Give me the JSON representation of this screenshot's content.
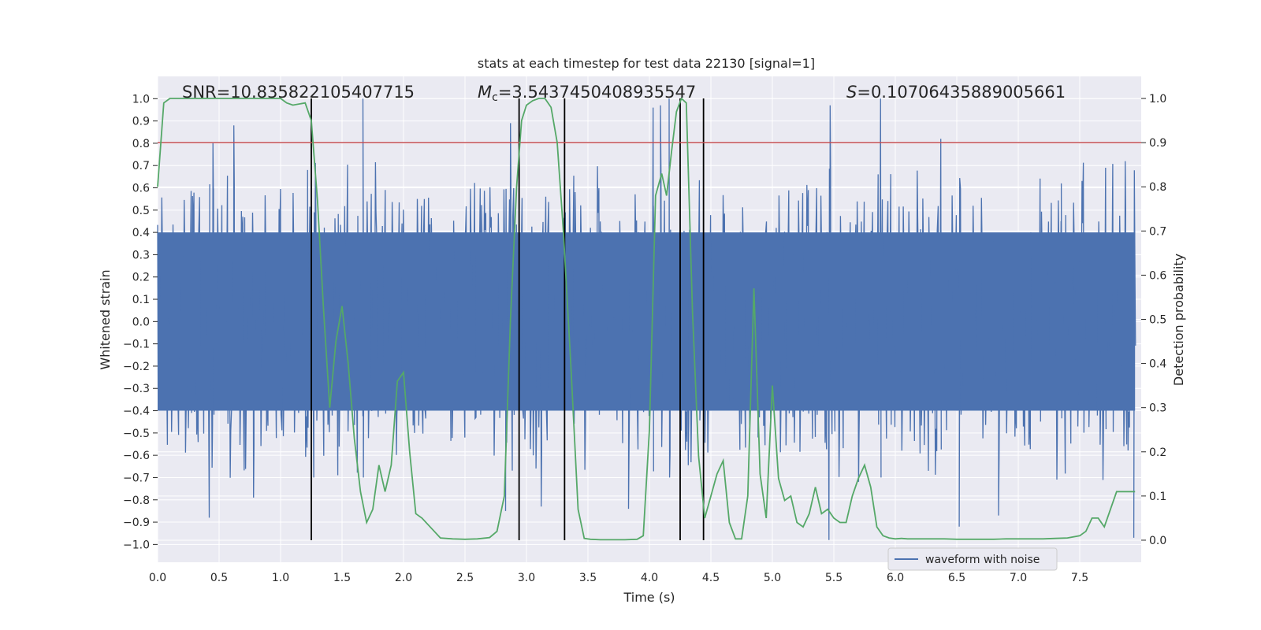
{
  "chart_data": {
    "type": "line",
    "title": "stats at each timestep for test data 22130 [signal=1]",
    "xlabel": "Time (s)",
    "ylabel": "Whitened strain",
    "y2label": "Detection probability",
    "xlim": [
      0.0,
      8.0
    ],
    "ylim": [
      -1.08,
      1.1
    ],
    "y2lim": [
      -0.05,
      1.05
    ],
    "x_ticks": [
      0.0,
      0.5,
      1.0,
      1.5,
      2.0,
      2.5,
      3.0,
      3.5,
      4.0,
      4.5,
      5.0,
      5.5,
      6.0,
      6.5,
      7.0,
      7.5
    ],
    "x_tick_labels": [
      "0.0",
      "0.5",
      "1.0",
      "1.5",
      "2.0",
      "2.5",
      "3.0",
      "3.5",
      "4.0",
      "4.5",
      "5.0",
      "5.5",
      "6.0",
      "6.5",
      "7.0",
      "7.5"
    ],
    "y_ticks": [
      -1.0,
      -0.9,
      -0.8,
      -0.7,
      -0.6,
      -0.5,
      -0.4,
      -0.3,
      -0.2,
      -0.1,
      0.0,
      0.1,
      0.2,
      0.3,
      0.4,
      0.5,
      0.6,
      0.7,
      0.8,
      0.9,
      1.0
    ],
    "y_tick_labels": [
      "−1.0",
      "−0.9",
      "−0.8",
      "−0.7",
      "−0.6",
      "−0.5",
      "−0.4",
      "−0.3",
      "−0.2",
      "−0.1",
      "0.0",
      "0.1",
      "0.2",
      "0.3",
      "0.4",
      "0.5",
      "0.6",
      "0.7",
      "0.8",
      "0.9",
      "1.0"
    ],
    "y2_ticks": [
      0.0,
      0.1,
      0.2,
      0.3,
      0.4,
      0.5,
      0.6,
      0.7,
      0.8,
      0.9,
      1.0
    ],
    "y2_tick_labels": [
      "0.0",
      "0.1",
      "0.2",
      "0.3",
      "0.4",
      "0.5",
      "0.6",
      "0.7",
      "0.8",
      "0.9",
      "1.0"
    ],
    "annotations": {
      "snr": "SNR=10.835822105407715",
      "mc_symbol": "M",
      "mc_sub": "c",
      "mc_value": "=3.5437450408935547",
      "s_symbol": "S",
      "s_value": "=0.10706435889005661"
    },
    "threshold": {
      "value": 0.9,
      "axis": "right",
      "color": "#c44e52"
    },
    "vertical_lines": [
      1.25,
      2.94,
      3.31,
      4.25,
      4.44
    ],
    "waveform": {
      "name": "waveform with noise",
      "color": "#4c72b0",
      "samples": 700,
      "core_amplitude": 0.4,
      "spikes": [
        {
          "x": 0.42,
          "v": -0.88
        },
        {
          "x": 0.45,
          "v": 0.8
        },
        {
          "x": 0.62,
          "v": 0.88
        },
        {
          "x": 0.78,
          "v": -0.79
        },
        {
          "x": 1.22,
          "v": 0.68
        },
        {
          "x": 1.27,
          "v": -0.7
        },
        {
          "x": 1.67,
          "v": 1.0
        },
        {
          "x": 2.87,
          "v": 0.89
        },
        {
          "x": 2.83,
          "v": -0.85
        },
        {
          "x": 3.12,
          "v": -0.83
        },
        {
          "x": 3.83,
          "v": -0.84
        },
        {
          "x": 4.03,
          "v": 0.96
        },
        {
          "x": 4.09,
          "v": 0.97
        },
        {
          "x": 4.16,
          "v": 1.0
        },
        {
          "x": 5.47,
          "v": 0.97
        },
        {
          "x": 5.46,
          "v": -0.98
        },
        {
          "x": 5.88,
          "v": 1.0
        },
        {
          "x": 6.37,
          "v": 0.82
        },
        {
          "x": 6.52,
          "v": -0.92
        },
        {
          "x": 6.84,
          "v": -0.87
        },
        {
          "x": 7.94,
          "v": -0.97
        },
        {
          "x": 7.71,
          "v": 0.69
        },
        {
          "x": 7.87,
          "v": 0.72
        },
        {
          "x": 7.35,
          "v": 0.62
        }
      ]
    },
    "probability": {
      "name": "detection probability",
      "color": "#55a868",
      "x": [
        0.0,
        0.05,
        0.1,
        0.2,
        0.3,
        0.5,
        0.7,
        0.9,
        1.0,
        1.05,
        1.1,
        1.2,
        1.25,
        1.3,
        1.35,
        1.4,
        1.45,
        1.5,
        1.55,
        1.6,
        1.65,
        1.7,
        1.75,
        1.8,
        1.85,
        1.9,
        1.95,
        2.0,
        2.05,
        2.1,
        2.15,
        2.2,
        2.25,
        2.3,
        2.4,
        2.5,
        2.6,
        2.7,
        2.76,
        2.82,
        2.87,
        2.92,
        2.96,
        3.0,
        3.05,
        3.1,
        3.15,
        3.2,
        3.25,
        3.3,
        3.36,
        3.42,
        3.47,
        3.52,
        3.6,
        3.7,
        3.8,
        3.9,
        3.95,
        4.0,
        4.05,
        4.1,
        4.14,
        4.18,
        4.22,
        4.26,
        4.3,
        4.35,
        4.4,
        4.45,
        4.5,
        4.55,
        4.6,
        4.65,
        4.7,
        4.75,
        4.8,
        4.85,
        4.9,
        4.95,
        5.0,
        5.05,
        5.1,
        5.15,
        5.2,
        5.25,
        5.3,
        5.35,
        5.4,
        5.45,
        5.5,
        5.55,
        5.6,
        5.65,
        5.7,
        5.75,
        5.8,
        5.85,
        5.9,
        5.95,
        6.0,
        6.05,
        6.1,
        6.2,
        6.3,
        6.4,
        6.5,
        6.6,
        6.7,
        6.8,
        6.9,
        7.0,
        7.1,
        7.2,
        7.3,
        7.4,
        7.5,
        7.55,
        7.6,
        7.65,
        7.7,
        7.75,
        7.8,
        7.85,
        7.9,
        7.95
      ],
      "values": [
        0.8,
        0.99,
        1.0,
        1.0,
        1.0,
        1.0,
        1.0,
        1.0,
        1.0,
        0.99,
        0.985,
        0.99,
        0.95,
        0.77,
        0.52,
        0.3,
        0.45,
        0.53,
        0.4,
        0.23,
        0.11,
        0.04,
        0.07,
        0.17,
        0.11,
        0.17,
        0.36,
        0.38,
        0.2,
        0.06,
        0.05,
        0.035,
        0.02,
        0.005,
        0.003,
        0.002,
        0.003,
        0.006,
        0.02,
        0.1,
        0.5,
        0.8,
        0.95,
        0.985,
        0.995,
        1.0,
        1.0,
        0.98,
        0.9,
        0.7,
        0.4,
        0.07,
        0.004,
        0.002,
        0.001,
        0.001,
        0.001,
        0.002,
        0.01,
        0.25,
        0.78,
        0.83,
        0.78,
        0.88,
        0.97,
        1.0,
        0.99,
        0.52,
        0.19,
        0.05,
        0.1,
        0.15,
        0.18,
        0.04,
        0.003,
        0.003,
        0.1,
        0.57,
        0.15,
        0.05,
        0.35,
        0.14,
        0.09,
        0.1,
        0.04,
        0.03,
        0.06,
        0.12,
        0.06,
        0.07,
        0.05,
        0.04,
        0.04,
        0.1,
        0.14,
        0.17,
        0.12,
        0.03,
        0.01,
        0.005,
        0.003,
        0.004,
        0.003,
        0.003,
        0.003,
        0.003,
        0.002,
        0.002,
        0.002,
        0.002,
        0.003,
        0.003,
        0.003,
        0.003,
        0.004,
        0.005,
        0.01,
        0.02,
        0.05,
        0.05,
        0.03,
        0.07,
        0.11,
        0.11,
        0.11,
        0.11
      ]
    },
    "legend": {
      "label": "waveform with noise",
      "placement": "lower-right"
    }
  }
}
